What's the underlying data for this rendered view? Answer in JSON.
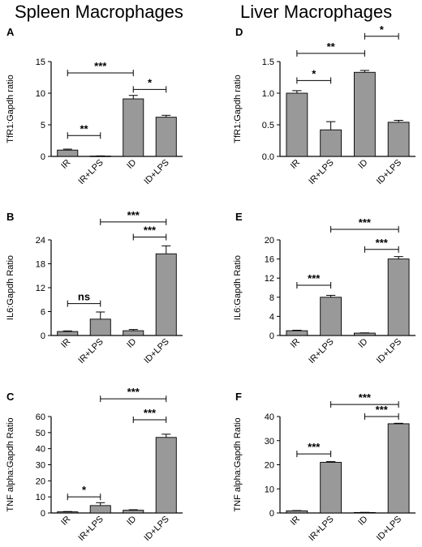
{
  "titles": {
    "left": "Spleen Macrophages",
    "right": "Liver Macrophages"
  },
  "colors": {
    "bar": "#999999",
    "stroke": "#000000"
  },
  "chart_data": [
    {
      "panel": "A",
      "type": "bar",
      "categories": [
        "IR",
        "IR+LPS",
        "ID",
        "ID+LPS"
      ],
      "values": [
        1.0,
        0.05,
        9.1,
        6.2
      ],
      "errors": [
        0.15,
        0.03,
        0.55,
        0.3
      ],
      "ylabel": "TfR1:Gapdh ratio",
      "ylim": [
        0,
        15
      ],
      "yticks": [
        "0",
        "5",
        "10",
        "15"
      ],
      "sig": [
        {
          "from": 0,
          "to": 1,
          "y": 3.3,
          "label": "**"
        },
        {
          "from": 0,
          "to": 2,
          "y": 13.2,
          "label": "***"
        },
        {
          "from": 2,
          "to": 3,
          "y": 10.6,
          "label": "*"
        }
      ]
    },
    {
      "panel": "B",
      "type": "bar",
      "categories": [
        "IR",
        "IR+LPS",
        "ID",
        "ID+LPS"
      ],
      "values": [
        1.0,
        4.1,
        1.2,
        20.5
      ],
      "errors": [
        0.15,
        1.8,
        0.3,
        2.0
      ],
      "ylabel": "IL6:Gapdh Ratio",
      "ylim": [
        0,
        24
      ],
      "yticks": [
        "0",
        "6",
        "12",
        "18",
        "24"
      ],
      "sig": [
        {
          "from": 0,
          "to": 1,
          "y": 8.0,
          "label": "ns"
        },
        {
          "from": 1,
          "to": 3,
          "y": 28.5,
          "label": "***"
        },
        {
          "from": 2,
          "to": 3,
          "y": 24.7,
          "label": "***"
        }
      ]
    },
    {
      "panel": "C",
      "type": "bar",
      "categories": [
        "IR",
        "IR+LPS",
        "ID",
        "ID+LPS"
      ],
      "values": [
        0.7,
        4.6,
        1.7,
        47.0
      ],
      "errors": [
        0.2,
        1.8,
        0.3,
        2.0
      ],
      "ylabel": "TNF alpha:Gapdh Ratio",
      "ylim": [
        0,
        60
      ],
      "yticks": [
        "0",
        "10",
        "20",
        "30",
        "40",
        "50",
        "60"
      ],
      "sig": [
        {
          "from": 0,
          "to": 1,
          "y": 10.0,
          "label": "*"
        },
        {
          "from": 1,
          "to": 3,
          "y": 71.0,
          "label": "***"
        },
        {
          "from": 2,
          "to": 3,
          "y": 58.0,
          "label": "***"
        }
      ]
    },
    {
      "panel": "D",
      "type": "bar",
      "categories": [
        "IR",
        "IR+LPS",
        "ID",
        "ID+LPS"
      ],
      "values": [
        1.0,
        0.42,
        1.33,
        0.54
      ],
      "errors": [
        0.04,
        0.13,
        0.03,
        0.03
      ],
      "ylabel": "TfR1:Gapdh ratio",
      "ylim": [
        0,
        1.5
      ],
      "yticks": [
        "0.0",
        "0.5",
        "1.0",
        "1.5"
      ],
      "sig": [
        {
          "from": 0,
          "to": 1,
          "y": 1.2,
          "label": "*"
        },
        {
          "from": 0,
          "to": 2,
          "y": 1.63,
          "label": "**"
        },
        {
          "from": 2,
          "to": 3,
          "y": 1.9,
          "label": "*"
        }
      ]
    },
    {
      "panel": "E",
      "type": "bar",
      "categories": [
        "IR",
        "IR+LPS",
        "ID",
        "ID+LPS"
      ],
      "values": [
        1.0,
        8.0,
        0.5,
        16.0
      ],
      "errors": [
        0.1,
        0.4,
        0.05,
        0.5
      ],
      "ylabel": "IL6:Gapdh Ratio",
      "ylim": [
        0,
        20
      ],
      "yticks": [
        "0",
        "4",
        "8",
        "12",
        "16",
        "20"
      ],
      "sig": [
        {
          "from": 0,
          "to": 1,
          "y": 10.5,
          "label": "***"
        },
        {
          "from": 1,
          "to": 3,
          "y": 22.2,
          "label": "***"
        },
        {
          "from": 2,
          "to": 3,
          "y": 18.0,
          "label": "***"
        }
      ]
    },
    {
      "panel": "F",
      "type": "bar",
      "categories": [
        "IR",
        "IR+LPS",
        "ID",
        "ID+LPS"
      ],
      "values": [
        0.9,
        21.0,
        0.2,
        37.0
      ],
      "errors": [
        0.1,
        0.3,
        0.05,
        0.2
      ],
      "ylabel": "TNF alpha:Gapdh Ratio",
      "ylim": [
        0,
        40
      ],
      "yticks": [
        "0",
        "10",
        "20",
        "30",
        "40"
      ],
      "sig": [
        {
          "from": 0,
          "to": 1,
          "y": 24.5,
          "label": "***"
        },
        {
          "from": 1,
          "to": 3,
          "y": 45.0,
          "label": "***"
        },
        {
          "from": 2,
          "to": 3,
          "y": 40.0,
          "label": "***"
        }
      ]
    }
  ]
}
